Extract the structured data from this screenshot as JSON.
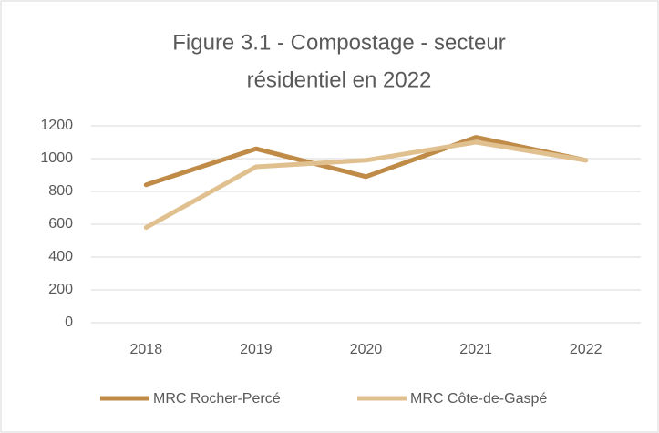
{
  "chart_data": {
    "type": "line",
    "title": [
      "Figure 3.1 - Compostage - secteur",
      "résidentiel en 2022"
    ],
    "categories": [
      "2018",
      "2019",
      "2020",
      "2021",
      "2022"
    ],
    "series": [
      {
        "name": "MRC Rocher-Percé",
        "color": "#bf8b47",
        "values": [
          840,
          1060,
          890,
          1130,
          990
        ]
      },
      {
        "name": "MRC Côte-de-Gaspé",
        "color": "#e0c08f",
        "values": [
          580,
          950,
          990,
          1100,
          990
        ]
      }
    ],
    "ylim": [
      0,
      1200
    ],
    "yticks": [
      0,
      200,
      400,
      600,
      800,
      1000,
      1200
    ],
    "grid": true,
    "legend": "bottom"
  }
}
